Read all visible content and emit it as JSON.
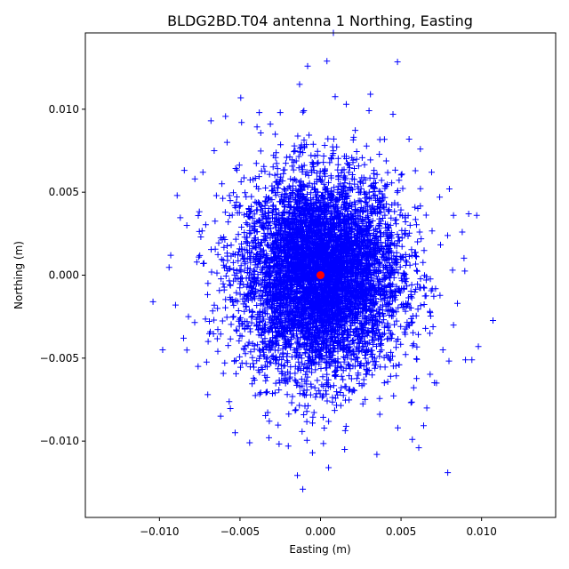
{
  "chart_data": {
    "type": "scatter",
    "title": "BLDG2BD.T04 antenna 1 Northing, Easting",
    "xlabel": "Easting (m)",
    "ylabel": "Northing (m)",
    "xlim": [
      -0.0146,
      0.0146
    ],
    "ylim": [
      -0.0146,
      0.0146
    ],
    "x_ticks": [
      -0.01,
      -0.005,
      0.0,
      0.005,
      0.01
    ],
    "x_tick_labels": [
      "−0.010",
      "−0.005",
      "0.000",
      "0.005",
      "0.010"
    ],
    "y_ticks": [
      -0.01,
      -0.005,
      0.0,
      0.005,
      0.01
    ],
    "y_tick_labels": [
      "−0.010",
      "−0.005",
      "0.000",
      "0.005",
      "0.010"
    ],
    "grid": false,
    "series": [
      {
        "marker": "plus",
        "color": "#0000ff",
        "core_spread": {
          "easting_std": 0.0025,
          "northing_std": 0.003
        },
        "points": [
          {
            "x": -0.0104,
            "y": -0.0016
          },
          {
            "x": -0.0098,
            "y": -0.0045
          },
          {
            "x": -0.0093,
            "y": 0.0012
          },
          {
            "x": -0.009,
            "y": -0.0018
          },
          {
            "x": -0.0089,
            "y": 0.0048
          },
          {
            "x": -0.0085,
            "y": -0.0038
          },
          {
            "x": -0.0083,
            "y": 0.003
          },
          {
            "x": -0.0082,
            "y": -0.0025
          },
          {
            "x": -0.0078,
            "y": 0.0058
          },
          {
            "x": -0.0076,
            "y": -0.0055
          },
          {
            "x": -0.0073,
            "y": 0.0062
          },
          {
            "x": -0.007,
            "y": -0.0072
          },
          {
            "x": -0.0068,
            "y": 0.0093
          },
          {
            "x": -0.0066,
            "y": 0.0075
          },
          {
            "x": -0.0062,
            "y": -0.0085
          },
          {
            "x": -0.0058,
            "y": 0.008
          },
          {
            "x": -0.0053,
            "y": -0.0095
          },
          {
            "x": -0.0049,
            "y": 0.0092
          },
          {
            "x": -0.0044,
            "y": -0.0101
          },
          {
            "x": -0.0038,
            "y": 0.0098
          },
          {
            "x": -0.0032,
            "y": -0.0098
          },
          {
            "x": -0.0025,
            "y": 0.0098
          },
          {
            "x": -0.002,
            "y": -0.0103
          },
          {
            "x": -0.0013,
            "y": 0.0115
          },
          {
            "x": -0.0011,
            "y": -0.0129
          },
          {
            "x": -0.0008,
            "y": 0.0126
          },
          {
            "x": -0.0005,
            "y": -0.0107
          },
          {
            "x": 0.0004,
            "y": 0.0129
          },
          {
            "x": 0.0005,
            "y": -0.0116
          },
          {
            "x": 0.0008,
            "y": 0.0146
          },
          {
            "x": 0.0015,
            "y": -0.0105
          },
          {
            "x": 0.0016,
            "y": 0.0103
          },
          {
            "x": 0.0031,
            "y": 0.0109
          },
          {
            "x": 0.0035,
            "y": -0.0108
          },
          {
            "x": 0.0045,
            "y": 0.0097
          },
          {
            "x": 0.0048,
            "y": -0.0092
          },
          {
            "x": 0.0055,
            "y": 0.0082
          },
          {
            "x": 0.0057,
            "y": -0.0099
          },
          {
            "x": 0.0061,
            "y": -0.0104
          },
          {
            "x": 0.0062,
            "y": 0.0076
          },
          {
            "x": 0.0066,
            "y": -0.008
          },
          {
            "x": 0.0069,
            "y": 0.0062
          },
          {
            "x": 0.0072,
            "y": -0.0065
          },
          {
            "x": 0.0074,
            "y": 0.0047
          },
          {
            "x": 0.0076,
            "y": -0.0045
          },
          {
            "x": 0.0079,
            "y": -0.0119
          },
          {
            "x": 0.008,
            "y": 0.0052
          },
          {
            "x": 0.0082,
            "y": 0.0003
          },
          {
            "x": 0.0085,
            "y": -0.0017
          },
          {
            "x": 0.0088,
            "y": 0.0026
          },
          {
            "x": 0.009,
            "y": -0.0051
          },
          {
            "x": 0.0092,
            "y": 0.0037
          },
          {
            "x": 0.0094,
            "y": -0.0051
          },
          {
            "x": 0.0097,
            "y": 0.0036
          },
          {
            "x": 0.0098,
            "y": -0.0043
          }
        ]
      },
      {
        "marker": "circle",
        "color": "#ff0000",
        "points": [
          {
            "x": 0.0,
            "y": 0.0
          }
        ]
      }
    ]
  }
}
